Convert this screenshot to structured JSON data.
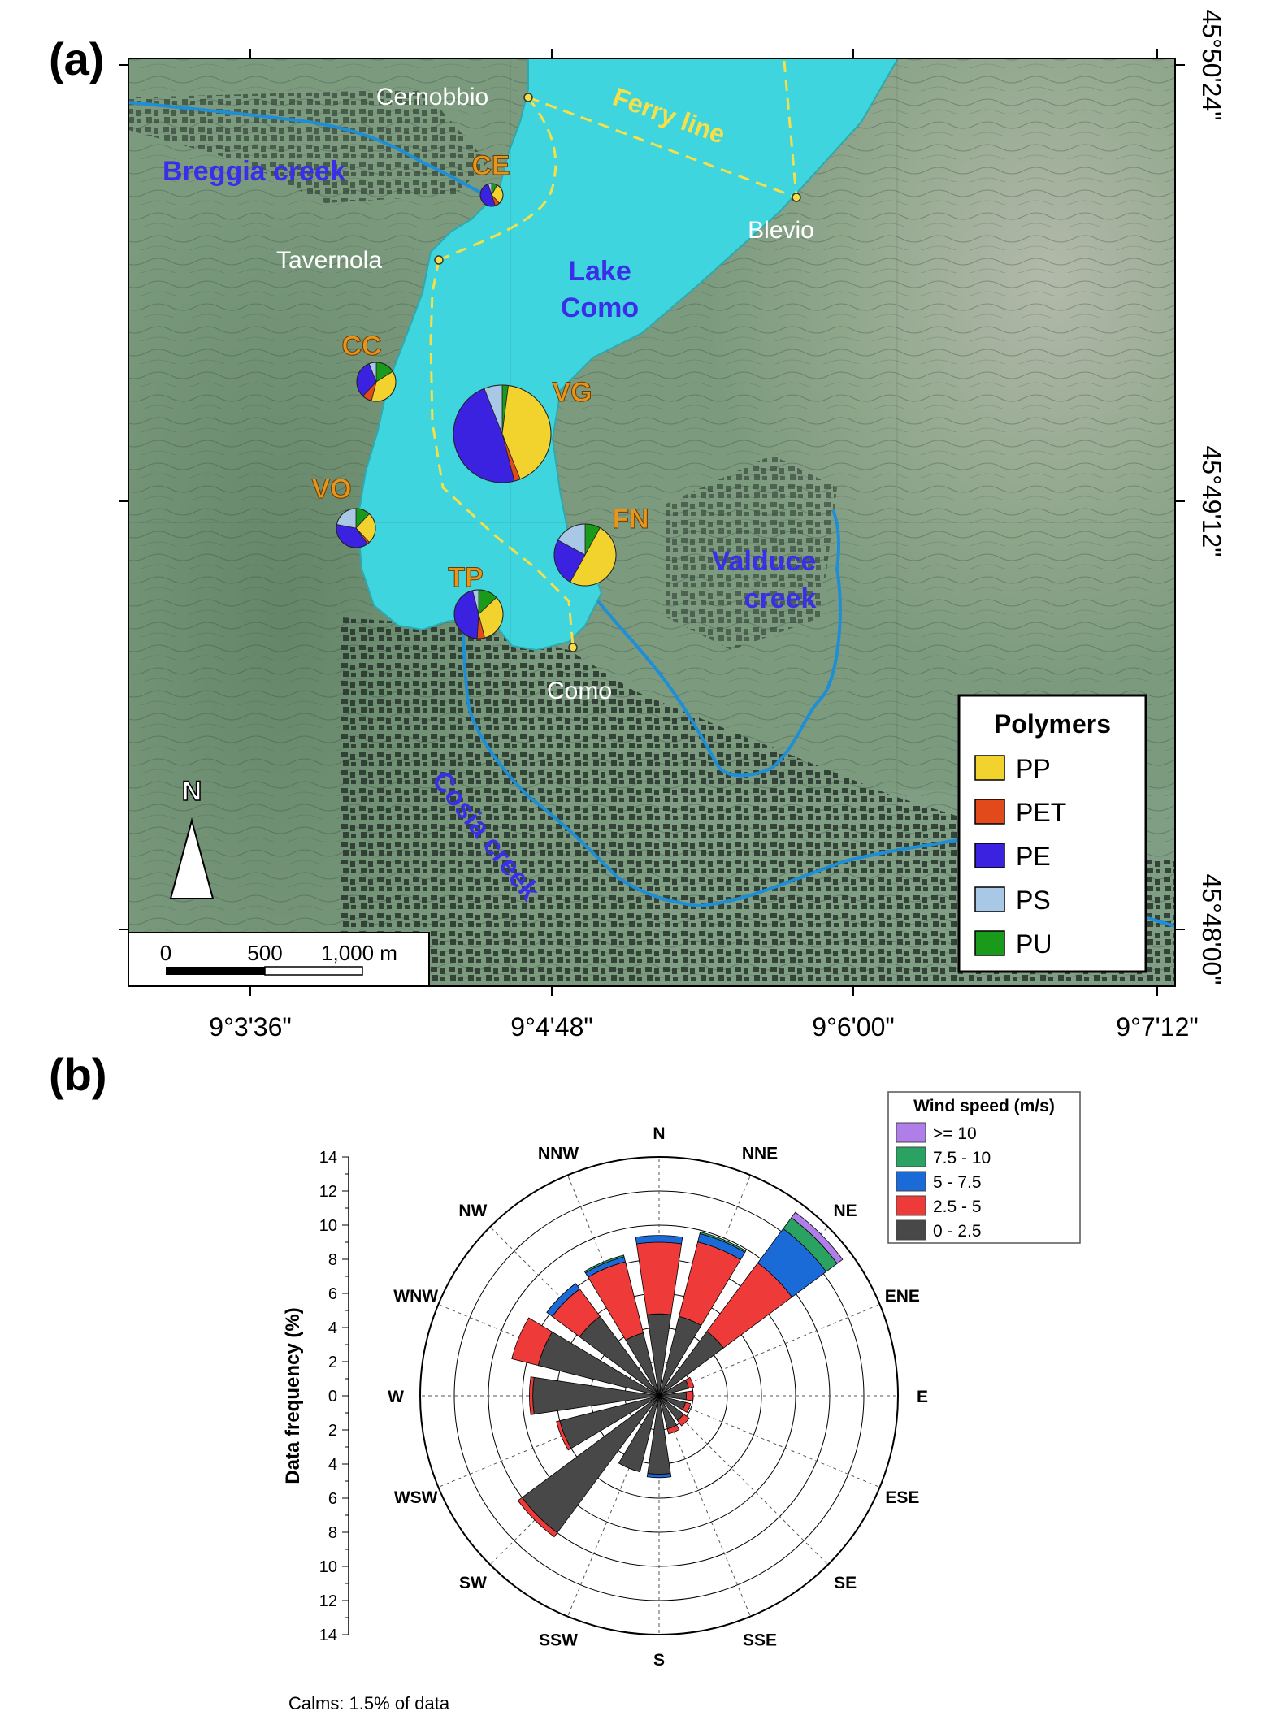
{
  "panel_a": {
    "label": "(a)",
    "top_coords": [
      "9°3'36\"",
      "9°4'48\"",
      "9°6'00\"",
      "9°7'12\""
    ],
    "right_coords": [
      "45°50'24\"",
      "45°49'12\"",
      "45°48'00\""
    ],
    "water_labels": [
      {
        "key": "lake",
        "lines": [
          "Lake",
          "Como"
        ],
        "color": "#3a2ee8"
      },
      {
        "key": "breggia",
        "text": "Breggia creek",
        "color": "#3a2ee8"
      },
      {
        "key": "valduce",
        "lines": [
          "Valduce",
          "creek"
        ],
        "color": "#3a2ee8"
      },
      {
        "key": "cosia",
        "text": "Cosia creek",
        "color": "#3a2ee8"
      },
      {
        "key": "ferry",
        "text": "Ferry line",
        "color": "#f5e04a"
      }
    ],
    "towns": [
      "Cernobbio",
      "Tavernola",
      "Blevio",
      "Como"
    ],
    "north_label": "N",
    "scale": {
      "ticks": [
        "0",
        "500",
        "1,000 m"
      ]
    },
    "legend": {
      "title": "Polymers",
      "items": [
        {
          "name": "PP",
          "color": "#f2d32e"
        },
        {
          "name": "PET",
          "color": "#e24a1c"
        },
        {
          "name": "PE",
          "color": "#3a22e0"
        },
        {
          "name": "PS",
          "color": "#a9c8e6"
        },
        {
          "name": "PU",
          "color": "#1a9a1a"
        }
      ]
    },
    "sites": [
      {
        "code": "CE",
        "shares": {
          "PP": 0.3,
          "PET": 0.07,
          "PE": 0.5,
          "PS": 0.05,
          "PU": 0.08
        }
      },
      {
        "code": "CC",
        "shares": {
          "PP": 0.38,
          "PET": 0.08,
          "PE": 0.32,
          "PS": 0.06,
          "PU": 0.16
        }
      },
      {
        "code": "VG",
        "shares": {
          "PP": 0.42,
          "PET": 0.02,
          "PE": 0.48,
          "PS": 0.06,
          "PU": 0.02
        }
      },
      {
        "code": "VO",
        "shares": {
          "PP": 0.26,
          "PET": 0.02,
          "PE": 0.38,
          "PS": 0.22,
          "PU": 0.12
        }
      },
      {
        "code": "FN",
        "shares": {
          "PP": 0.5,
          "PET": 0.0,
          "PE": 0.25,
          "PS": 0.17,
          "PU": 0.08
        }
      },
      {
        "code": "TP",
        "shares": {
          "PP": 0.33,
          "PET": 0.05,
          "PE": 0.45,
          "PS": 0.04,
          "PU": 0.13
        }
      }
    ],
    "colors": {
      "lake": "#3ed5de",
      "river": "#1e8fd6",
      "site_label": "#e8951c",
      "ferry": "#f5e04a"
    }
  },
  "chart_data": {
    "type": "windrose",
    "panel_label": "(b)",
    "ylabel": "Data frequency (%)",
    "axis_ticks": [
      "14",
      "12",
      "10",
      "8",
      "6",
      "4",
      "2",
      "0",
      "2",
      "4",
      "6",
      "8",
      "10",
      "12",
      "14"
    ],
    "rmax": 14,
    "rings": [
      2,
      4,
      6,
      8,
      10,
      12,
      14
    ],
    "directions": [
      "N",
      "NNE",
      "NE",
      "ENE",
      "E",
      "ESE",
      "SE",
      "SSE",
      "S",
      "SSW",
      "SW",
      "WSW",
      "W",
      "WNW",
      "NW",
      "NNW"
    ],
    "legend_title": "Wind speed (m/s)",
    "series": [
      {
        "name": "0 - 2.5",
        "color": "#484848",
        "values": [
          4.8,
          4.8,
          4.7,
          1.8,
          1.6,
          1.6,
          1.8,
          2.0,
          4.6,
          4.6,
          10.0,
          6.0,
          7.4,
          7.3,
          5.8,
          3.8
        ]
      },
      {
        "name": "2.5 - 5",
        "color": "#ef3a3a",
        "values": [
          4.2,
          4.5,
          5.0,
          0.3,
          0.4,
          0.3,
          0.4,
          0.3,
          0.0,
          0.0,
          0.3,
          0.2,
          0.2,
          1.6,
          2.0,
          4.3
        ]
      },
      {
        "name": "5 - 7.5",
        "color": "#1a6ad8",
        "values": [
          0.4,
          0.5,
          2.5,
          0.0,
          0.0,
          0.0,
          0.0,
          0.0,
          0.2,
          0.0,
          0.0,
          0.0,
          0.0,
          0.0,
          0.4,
          0.3
        ]
      },
      {
        "name": "7.5 - 10",
        "color": "#2aa362",
        "values": [
          0.0,
          0.1,
          0.8,
          0.0,
          0.0,
          0.0,
          0.0,
          0.0,
          0.0,
          0.0,
          0.0,
          0.0,
          0.0,
          0.0,
          0.0,
          0.1
        ]
      },
      {
        "name": ">= 10",
        "color": "#b07ee8",
        "values": [
          0.0,
          0.0,
          0.4,
          0.0,
          0.0,
          0.0,
          0.0,
          0.0,
          0.0,
          0.0,
          0.0,
          0.0,
          0.0,
          0.0,
          0.0,
          0.0
        ]
      }
    ],
    "legend_order": [
      ">= 10",
      "7.5 - 10",
      "5 - 7.5",
      "2.5 - 5",
      "0 - 2.5"
    ],
    "calms_note": "Calms: 1.5% of data"
  }
}
